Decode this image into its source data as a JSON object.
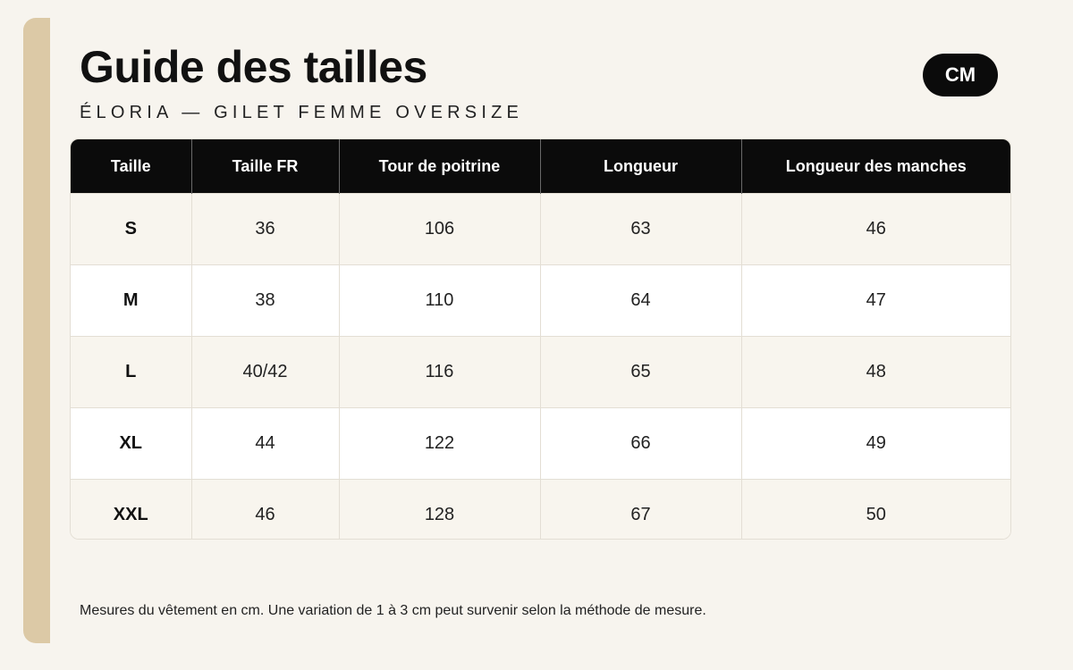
{
  "header": {
    "title": "Guide des tailles",
    "subtitle": "ÉLORIA — GILET FEMME OVERSIZE",
    "unit_badge": "CM"
  },
  "table": {
    "columns": [
      "Taille",
      "Taille FR",
      "Tour de poitrine",
      "Longueur",
      "Longueur des manches"
    ],
    "rows": [
      [
        "S",
        "36",
        "106",
        "63",
        "46"
      ],
      [
        "M",
        "38",
        "110",
        "64",
        "47"
      ],
      [
        "L",
        "40/42",
        "116",
        "65",
        "48"
      ],
      [
        "XL",
        "44",
        "122",
        "66",
        "49"
      ],
      [
        "XXL",
        "46",
        "128",
        "67",
        "50"
      ]
    ]
  },
  "footnote": "Mesures du vêtement en cm. Une variation de 1 à 3 cm peut survenir selon la méthode de mesure.",
  "colors": {
    "accent": "#dcc9a6",
    "header_bg": "#0b0b0b",
    "page_bg": "#f7f4ee"
  }
}
